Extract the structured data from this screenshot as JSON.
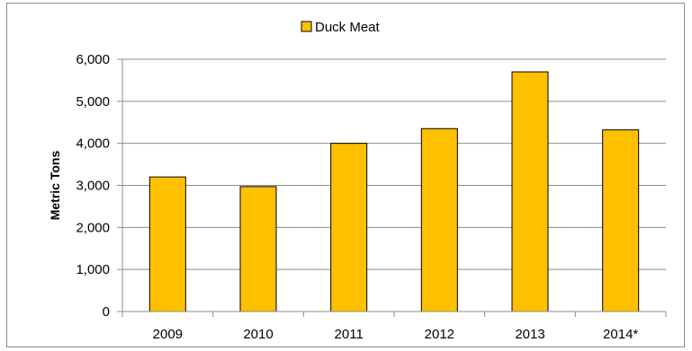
{
  "chart_data": {
    "type": "bar",
    "title": "",
    "xlabel": "",
    "ylabel": "Metric Tons",
    "categories": [
      "2009",
      "2010",
      "2011",
      "2012",
      "2013",
      "2014*"
    ],
    "series": [
      {
        "name": "Duck Meat",
        "values": [
          3200,
          2970,
          4000,
          4350,
          5700,
          4320
        ],
        "color": "#ffc000"
      }
    ],
    "ylim": [
      0,
      6000
    ],
    "yticks": [
      0,
      1000,
      2000,
      3000,
      4000,
      5000,
      6000
    ],
    "ytick_labels": [
      "0",
      "1,000",
      "2,000",
      "3,000",
      "4,000",
      "5,000",
      "6,000"
    ],
    "grid": true,
    "legend_position": "top-center",
    "bar_edge_color": "#000000",
    "grid_color": "#8c8c8c"
  }
}
